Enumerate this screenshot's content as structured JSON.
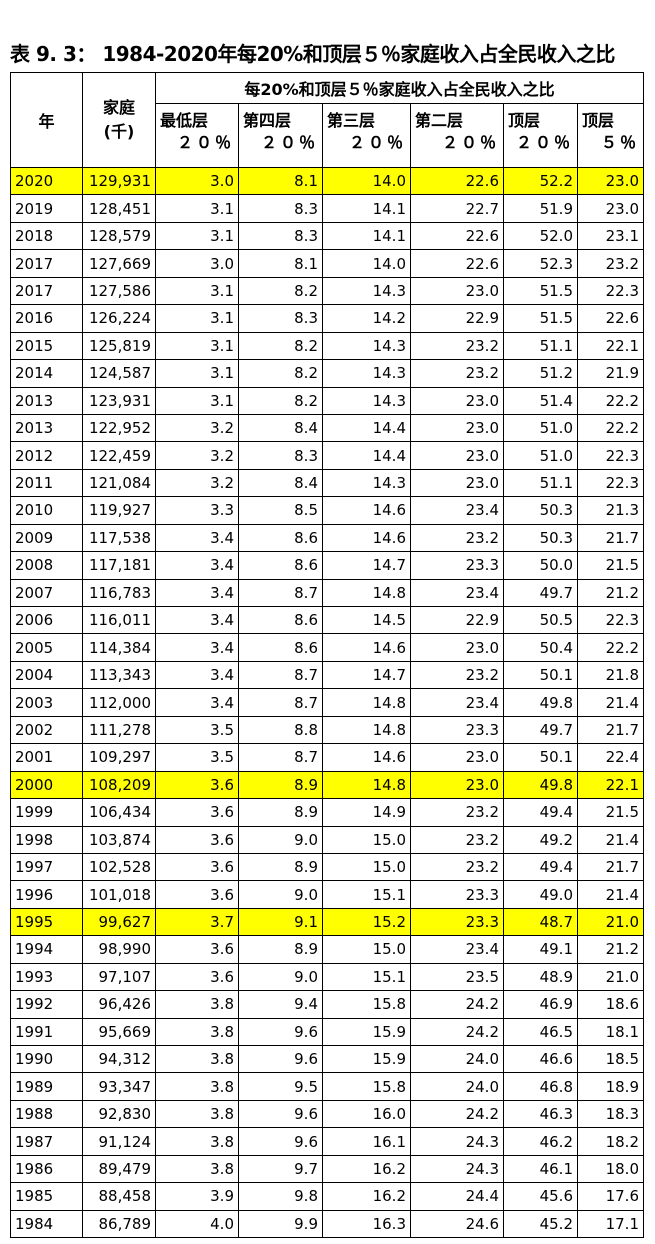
{
  "title": "表 9. 3：  1984-2020年每20%和顶层５％家庭收入占全民收入之比",
  "table": {
    "header": {
      "year": "年",
      "households": [
        "家庭",
        "(千)"
      ],
      "group": "每20%和顶层５％家庭收入占全民收入之比",
      "columns": [
        [
          "最低层",
          "２０％"
        ],
        [
          "第四层",
          "２０％"
        ],
        [
          "第三层",
          "２０％"
        ],
        [
          "第二层",
          "２０％"
        ],
        [
          "顶层",
          "２０％"
        ],
        [
          "顶层",
          "５％"
        ]
      ]
    },
    "highlight_color": "#ffff00",
    "rows": [
      {
        "year": "2020",
        "households": "129,931",
        "values": [
          "3.0",
          "8.1",
          "14.0",
          "22.6",
          "52.2",
          "23.0"
        ],
        "highlight": true
      },
      {
        "year": "2019",
        "households": "128,451",
        "values": [
          "3.1",
          "8.3",
          "14.1",
          "22.7",
          "51.9",
          "23.0"
        ]
      },
      {
        "year": "2018",
        "households": "128,579",
        "values": [
          "3.1",
          "8.3",
          "14.1",
          "22.6",
          "52.0",
          "23.1"
        ]
      },
      {
        "year": "2017",
        "households": "127,669",
        "values": [
          "3.0",
          "8.1",
          "14.0",
          "22.6",
          "52.3",
          "23.2"
        ]
      },
      {
        "year": "2017",
        "households": "127,586",
        "values": [
          "3.1",
          "8.2",
          "14.3",
          "23.0",
          "51.5",
          "22.3"
        ]
      },
      {
        "year": "2016",
        "households": "126,224",
        "values": [
          "3.1",
          "8.3",
          "14.2",
          "22.9",
          "51.5",
          "22.6"
        ]
      },
      {
        "year": "2015",
        "households": "125,819",
        "values": [
          "3.1",
          "8.2",
          "14.3",
          "23.2",
          "51.1",
          "22.1"
        ]
      },
      {
        "year": "2014",
        "households": "124,587",
        "values": [
          "3.1",
          "8.2",
          "14.3",
          "23.2",
          "51.2",
          "21.9"
        ]
      },
      {
        "year": "2013",
        "households": "123,931",
        "values": [
          "3.1",
          "8.2",
          "14.3",
          "23.0",
          "51.4",
          "22.2"
        ]
      },
      {
        "year": "2013",
        "households": "122,952",
        "values": [
          "3.2",
          "8.4",
          "14.4",
          "23.0",
          "51.0",
          "22.2"
        ]
      },
      {
        "year": "2012",
        "households": "122,459",
        "values": [
          "3.2",
          "8.3",
          "14.4",
          "23.0",
          "51.0",
          "22.3"
        ]
      },
      {
        "year": "2011",
        "households": "121,084",
        "values": [
          "3.2",
          "8.4",
          "14.3",
          "23.0",
          "51.1",
          "22.3"
        ]
      },
      {
        "year": "2010",
        "households": "119,927",
        "values": [
          "3.3",
          "8.5",
          "14.6",
          "23.4",
          "50.3",
          "21.3"
        ]
      },
      {
        "year": "2009",
        "households": "117,538",
        "values": [
          "3.4",
          "8.6",
          "14.6",
          "23.2",
          "50.3",
          "21.7"
        ]
      },
      {
        "year": "2008",
        "households": "117,181",
        "values": [
          "3.4",
          "8.6",
          "14.7",
          "23.3",
          "50.0",
          "21.5"
        ]
      },
      {
        "year": "2007",
        "households": "116,783",
        "values": [
          "3.4",
          "8.7",
          "14.8",
          "23.4",
          "49.7",
          "21.2"
        ]
      },
      {
        "year": "2006",
        "households": "116,011",
        "values": [
          "3.4",
          "8.6",
          "14.5",
          "22.9",
          "50.5",
          "22.3"
        ]
      },
      {
        "year": "2005",
        "households": "114,384",
        "values": [
          "3.4",
          "8.6",
          "14.6",
          "23.0",
          "50.4",
          "22.2"
        ]
      },
      {
        "year": "2004",
        "households": "113,343",
        "values": [
          "3.4",
          "8.7",
          "14.7",
          "23.2",
          "50.1",
          "21.8"
        ]
      },
      {
        "year": "2003",
        "households": "112,000",
        "values": [
          "3.4",
          "8.7",
          "14.8",
          "23.4",
          "49.8",
          "21.4"
        ]
      },
      {
        "year": "2002",
        "households": "111,278",
        "values": [
          "3.5",
          "8.8",
          "14.8",
          "23.3",
          "49.7",
          "21.7"
        ]
      },
      {
        "year": "2001",
        "households": "109,297",
        "values": [
          "3.5",
          "8.7",
          "14.6",
          "23.0",
          "50.1",
          "22.4"
        ]
      },
      {
        "year": "2000",
        "households": "108,209",
        "values": [
          "3.6",
          "8.9",
          "14.8",
          "23.0",
          "49.8",
          "22.1"
        ],
        "highlight": true
      },
      {
        "year": "1999",
        "households": "106,434",
        "values": [
          "3.6",
          "8.9",
          "14.9",
          "23.2",
          "49.4",
          "21.5"
        ]
      },
      {
        "year": "1998",
        "households": "103,874",
        "values": [
          "3.6",
          "9.0",
          "15.0",
          "23.2",
          "49.2",
          "21.4"
        ]
      },
      {
        "year": "1997",
        "households": "102,528",
        "values": [
          "3.6",
          "8.9",
          "15.0",
          "23.2",
          "49.4",
          "21.7"
        ]
      },
      {
        "year": "1996",
        "households": "101,018",
        "values": [
          "3.6",
          "9.0",
          "15.1",
          "23.3",
          "49.0",
          "21.4"
        ]
      },
      {
        "year": "1995",
        "households": "99,627",
        "values": [
          "3.7",
          "9.1",
          "15.2",
          "23.3",
          "48.7",
          "21.0"
        ],
        "highlight": true
      },
      {
        "year": "1994",
        "households": "98,990",
        "values": [
          "3.6",
          "8.9",
          "15.0",
          "23.4",
          "49.1",
          "21.2"
        ]
      },
      {
        "year": "1993",
        "households": "97,107",
        "values": [
          "3.6",
          "9.0",
          "15.1",
          "23.5",
          "48.9",
          "21.0"
        ]
      },
      {
        "year": "1992",
        "households": "96,426",
        "values": [
          "3.8",
          "9.4",
          "15.8",
          "24.2",
          "46.9",
          "18.6"
        ]
      },
      {
        "year": "1991",
        "households": "95,669",
        "values": [
          "3.8",
          "9.6",
          "15.9",
          "24.2",
          "46.5",
          "18.1"
        ]
      },
      {
        "year": "1990",
        "households": "94,312",
        "values": [
          "3.8",
          "9.6",
          "15.9",
          "24.0",
          "46.6",
          "18.5"
        ]
      },
      {
        "year": "1989",
        "households": "93,347",
        "values": [
          "3.8",
          "9.5",
          "15.8",
          "24.0",
          "46.8",
          "18.9"
        ]
      },
      {
        "year": "1988",
        "households": "92,830",
        "values": [
          "3.8",
          "9.6",
          "16.0",
          "24.2",
          "46.3",
          "18.3"
        ]
      },
      {
        "year": "1987",
        "households": "91,124",
        "values": [
          "3.8",
          "9.6",
          "16.1",
          "24.3",
          "46.2",
          "18.2"
        ]
      },
      {
        "year": "1986",
        "households": "89,479",
        "values": [
          "3.8",
          "9.7",
          "16.2",
          "24.3",
          "46.1",
          "18.0"
        ]
      },
      {
        "year": "1985",
        "households": "88,458",
        "values": [
          "3.9",
          "9.8",
          "16.2",
          "24.4",
          "45.6",
          "17.6"
        ]
      },
      {
        "year": "1984",
        "households": "86,789",
        "values": [
          "4.0",
          "9.9",
          "16.3",
          "24.6",
          "45.2",
          "17.1"
        ]
      }
    ]
  }
}
